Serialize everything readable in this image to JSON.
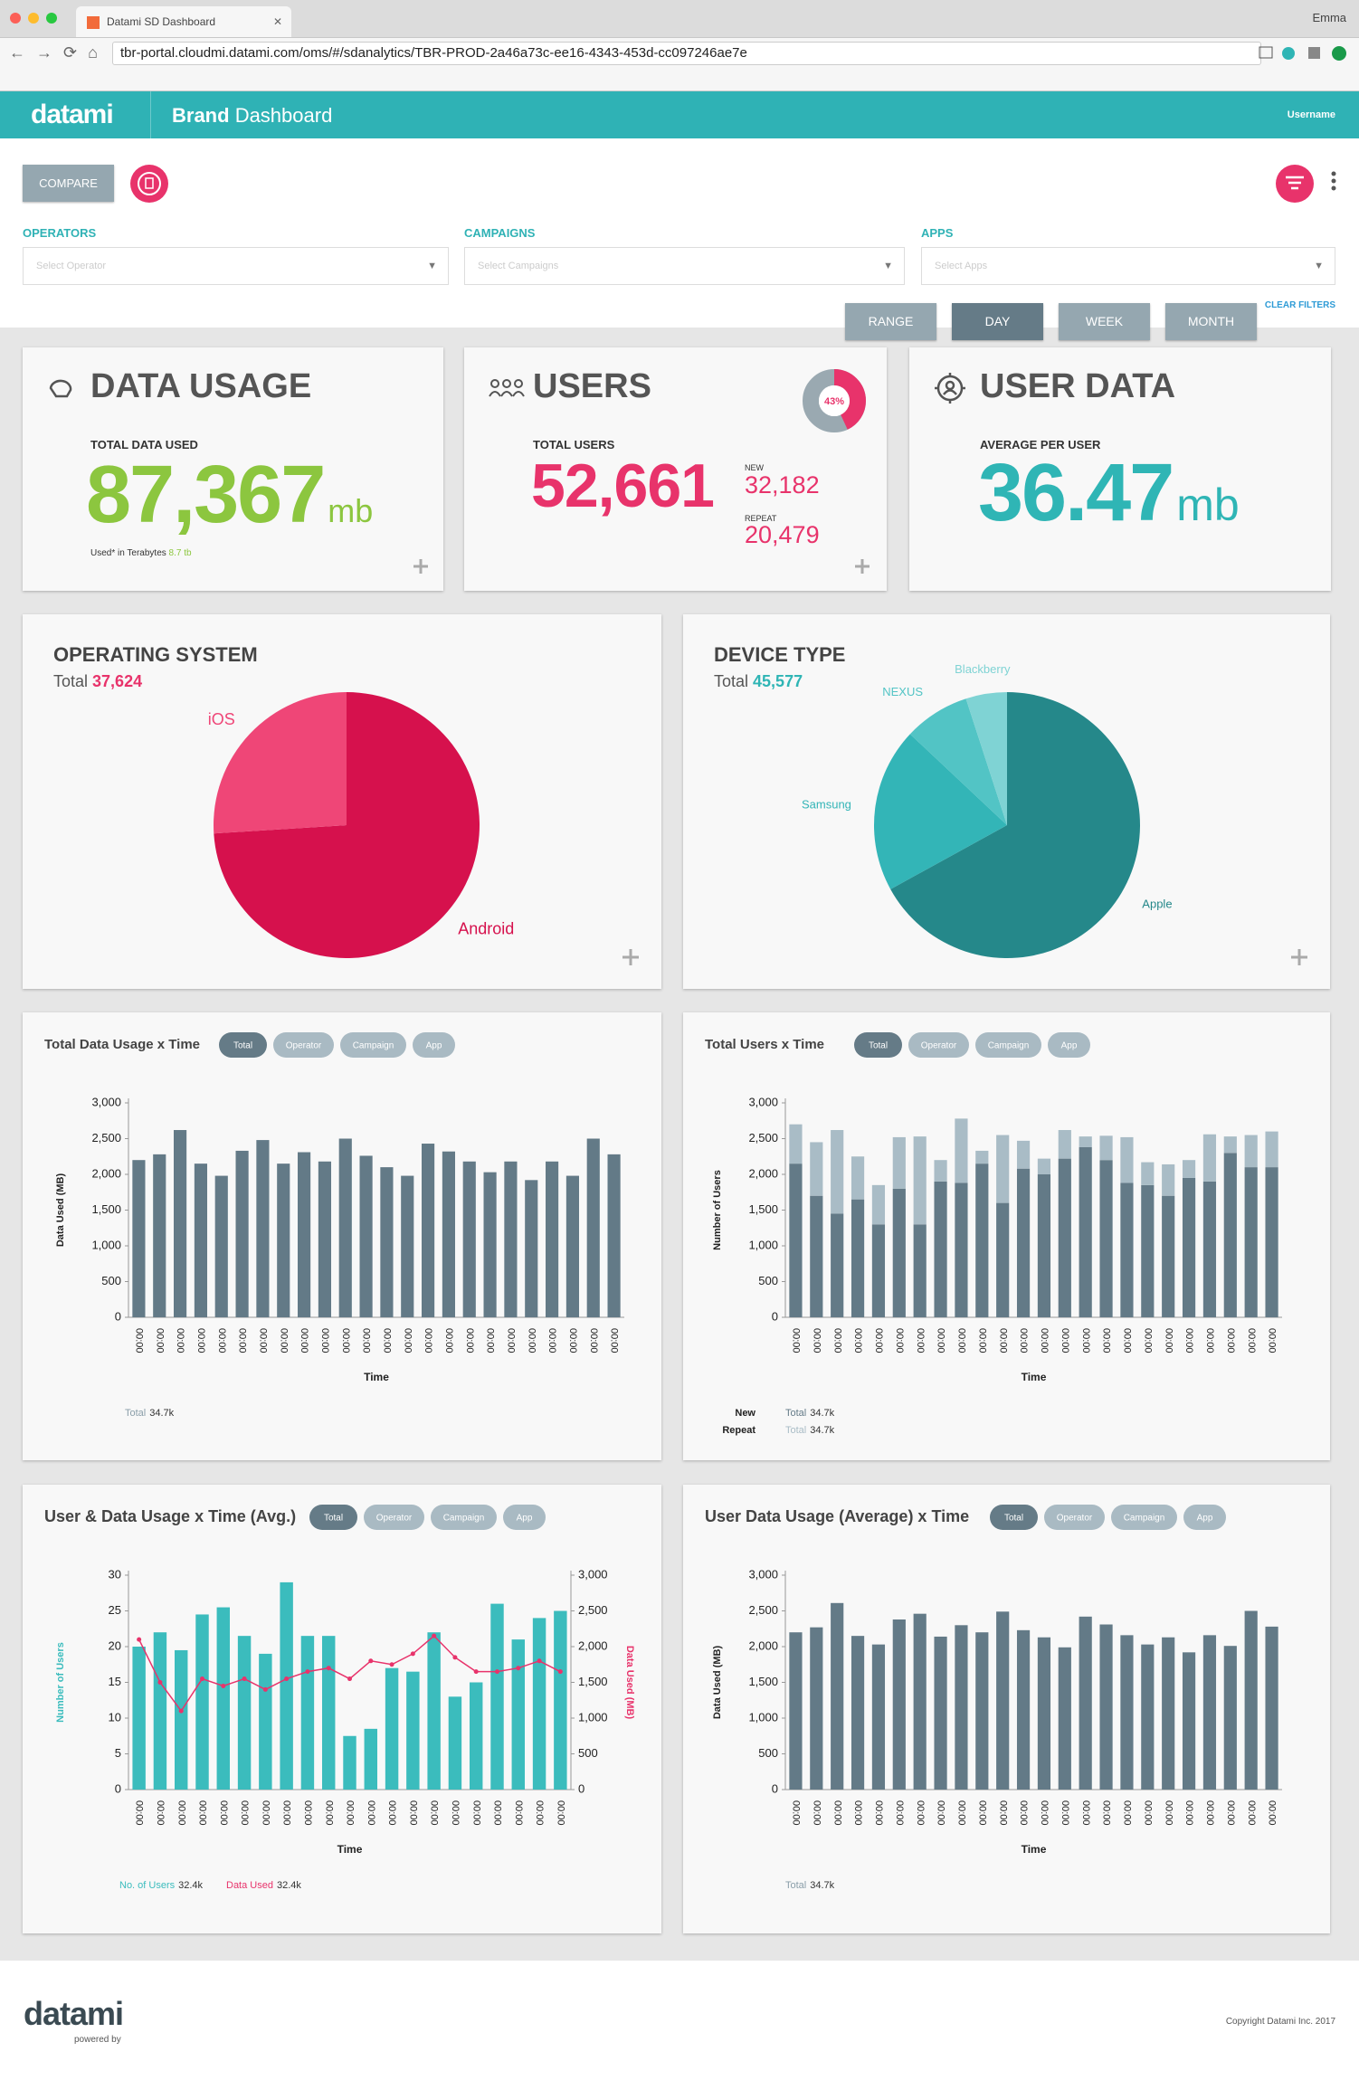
{
  "browser": {
    "tab": "Datami SD Dashboard",
    "user": "Emma",
    "url": "tbr-portal.cloudmi.datami.com/oms/#/sdanalytics/TBR-PROD-2a46a73c-ee16-4343-453d-cc097246ae7e"
  },
  "header": {
    "logo": "datami",
    "title_bold": "Brand",
    "title": "Dashboard",
    "user": "Username"
  },
  "toolbar": {
    "compare": "COMPARE",
    "ranges": [
      "RANGE",
      "DAY",
      "WEEK",
      "MONTH"
    ],
    "selected": 1
  },
  "filters": {
    "items": [
      {
        "label": "OPERATORS",
        "placeholder": "Select Operator"
      },
      {
        "label": "CAMPAIGNS",
        "placeholder": "Select Campaigns"
      },
      {
        "label": "APPS",
        "placeholder": "Select Apps"
      }
    ],
    "clear": "CLEAR FILTERS"
  },
  "cards": {
    "data_usage": {
      "title": "DATA USAGE",
      "label": "TOTAL DATA USED",
      "value": "87,367",
      "unit": "mb",
      "note": "Used* in Terabytes",
      "note_value": "8.7 tb"
    },
    "users": {
      "title": "USERS",
      "share": {
        "value": 43,
        "label": "43%"
      },
      "label": "TOTAL USERS",
      "value": "52,661",
      "new_label": "NEW",
      "new_value": "32,182",
      "repeat_label": "REPEAT",
      "repeat_value": "20,479"
    },
    "user_data": {
      "title": "USER DATA",
      "label": "AVERAGE PER USER",
      "value": "36.47",
      "unit": "mb"
    }
  },
  "pies": [
    {
      "type": "pie",
      "title": "OPERATING SYSTEM",
      "total_label": "Total",
      "total": "37,624",
      "accent": "#e8336b",
      "categories": [
        "Android",
        "iOS"
      ],
      "values": [
        74,
        26
      ],
      "colors": [
        "#d6114d",
        "#ef4677"
      ]
    },
    {
      "type": "pie",
      "title": "DEVICE TYPE",
      "total_label": "Total",
      "total": "45,577",
      "accent": "#2fb5b5",
      "categories": [
        "Apple",
        "Samsung",
        "NEXUS",
        "Blackberry"
      ],
      "values": [
        67,
        20,
        8,
        5
      ],
      "colors": [
        "#25888a",
        "#33b5b7",
        "#52c4c5",
        "#7fd3d4"
      ]
    }
  ],
  "charts": [
    {
      "type": "bar",
      "title": "Total Data Usage x Time",
      "tabs": [
        "Total",
        "Operator",
        "Campaign",
        "App"
      ],
      "selected": 0,
      "categories": [
        "00:00",
        "00:00",
        "00:00",
        "00:00",
        "00:00",
        "00:00",
        "00:00",
        "00:00",
        "00:00",
        "00:00",
        "00:00",
        "00:00",
        "00:00",
        "00:00",
        "00:00",
        "00:00",
        "00:00",
        "00:00",
        "00:00",
        "00:00",
        "00:00",
        "00:00",
        "00:00",
        "00:00"
      ],
      "series": [
        {
          "name": "Total",
          "total": "34.7k",
          "color": "#637a87",
          "values": [
            2200,
            2280,
            2620,
            2150,
            1980,
            2330,
            2480,
            2150,
            2310,
            2180,
            2500,
            2260,
            2100,
            1980,
            2430,
            2320,
            2180,
            2030,
            2180,
            1920,
            2180,
            1980,
            2500,
            2280
          ]
        }
      ],
      "ylim": [
        0,
        3000
      ],
      "yticks": [
        0,
        500,
        {
          "value": 1000,
          "label": "1,000"
        },
        {
          "value": 1500,
          "label": "1,500"
        },
        {
          "value": 2000,
          "label": "2,000"
        },
        {
          "value": 2500,
          "label": "2,500"
        },
        {
          "value": 3000,
          "label": "3,000"
        }
      ],
      "y_label": "Data Used (MB)",
      "x_label": "Time"
    },
    {
      "type": "stacked",
      "title": "Total Users x Time",
      "tabs": [
        "Total",
        "Operator",
        "Campaign",
        "App"
      ],
      "selected": 0,
      "categories": [
        "00:00",
        "00:00",
        "00:00",
        "00:00",
        "00:00",
        "00:00",
        "00:00",
        "00:00",
        "00:00",
        "00:00",
        "00:00",
        "00:00",
        "00:00",
        "00:00",
        "00:00",
        "00:00",
        "00:00",
        "00:00",
        "00:00",
        "00:00",
        "00:00",
        "00:00",
        "00:00",
        "00:00"
      ],
      "series": [
        {
          "name": "New",
          "total_label": "Total",
          "total": "34.7k",
          "color": "#637a87",
          "values": [
            2150,
            1700,
            1450,
            1650,
            1300,
            1800,
            1300,
            1900,
            1880,
            2150,
            1600,
            2080,
            2000,
            2220,
            2380,
            2200,
            1880,
            1850,
            1700,
            1950,
            1900,
            2300,
            2100,
            2100
          ]
        },
        {
          "name": "Repeat",
          "total_label": "Total",
          "total": "34.7k",
          "color": "#a9bcc6",
          "values": [
            550,
            750,
            1170,
            600,
            550,
            720,
            1230,
            300,
            900,
            180,
            950,
            390,
            220,
            400,
            150,
            340,
            640,
            320,
            440,
            250,
            660,
            230,
            450,
            500
          ]
        }
      ],
      "ylim": [
        0,
        3000
      ],
      "yticks": [
        0,
        500,
        {
          "value": 1000,
          "label": "1,000"
        },
        {
          "value": 1500,
          "label": "1,500"
        },
        {
          "value": 2000,
          "label": "2,000"
        },
        {
          "value": 2500,
          "label": "2,500"
        },
        {
          "value": 3000,
          "label": "3,000"
        }
      ],
      "y_label": "Number of Users",
      "x_label": "Time"
    },
    {
      "type": "combo",
      "title": "User & Data Usage x Time (Avg.)",
      "tabs": [
        "Total",
        "Operator",
        "Campaign",
        "App"
      ],
      "selected": 0,
      "categories": [
        "00:00",
        "00:00",
        "00:00",
        "00:00",
        "00:00",
        "00:00",
        "00:00",
        "00:00",
        "00:00",
        "00:00",
        "00:00",
        "00:00",
        "00:00",
        "00:00",
        "00:00",
        "00:00",
        "00:00",
        "00:00",
        "00:00",
        "00:00",
        "00:00"
      ],
      "series": [
        {
          "name": "No. of Users",
          "total": "32.4k",
          "color": "#3bbcbd",
          "values": [
            20,
            22,
            19.5,
            24.5,
            25.5,
            21.5,
            19,
            29,
            21.5,
            21.5,
            7.5,
            8.5,
            17,
            16.5,
            22,
            13,
            15,
            26,
            21,
            24,
            25
          ]
        },
        {
          "name": "Data Used",
          "total": "32.4k",
          "color": "#e8336b",
          "axis": "y2",
          "values": [
            2100,
            1500,
            1100,
            1550,
            1450,
            1550,
            1400,
            1550,
            1650,
            1700,
            1550,
            1800,
            1750,
            1900,
            2150,
            1850,
            1650,
            1650,
            1700,
            1800,
            1650
          ]
        }
      ],
      "ylim": [
        0,
        30
      ],
      "yticks": [
        0,
        5,
        10,
        15,
        20,
        25,
        30
      ],
      "y2lim": [
        0,
        3000
      ],
      "y2ticks": [
        0,
        500,
        {
          "value": 1000,
          "label": "1,000"
        },
        {
          "value": 1500,
          "label": "1,500"
        },
        {
          "value": 2000,
          "label": "2,000"
        },
        {
          "value": 2500,
          "label": "2,500"
        },
        {
          "value": 3000,
          "label": "3,000"
        }
      ],
      "y_label": "Number of Users",
      "y2_label": "Data Used (MB)",
      "x_label": "Time"
    },
    {
      "type": "bar",
      "title": "User Data Usage (Average) x Time",
      "tabs": [
        "Total",
        "Operator",
        "Campaign",
        "App"
      ],
      "selected": 0,
      "categories": [
        "00:00",
        "00:00",
        "00:00",
        "00:00",
        "00:00",
        "00:00",
        "00:00",
        "00:00",
        "00:00",
        "00:00",
        "00:00",
        "00:00",
        "00:00",
        "00:00",
        "00:00",
        "00:00",
        "00:00",
        "00:00",
        "00:00",
        "00:00",
        "00:00",
        "00:00",
        "00:00",
        "00:00"
      ],
      "series": [
        {
          "name": "Total",
          "total": "34.7k",
          "color": "#637a87",
          "values": [
            2200,
            2270,
            2610,
            2150,
            2030,
            2380,
            2460,
            2140,
            2300,
            2200,
            2490,
            2230,
            2130,
            1990,
            2420,
            2310,
            2160,
            2030,
            2130,
            1920,
            2160,
            2010,
            2500,
            2280
          ]
        }
      ],
      "ylim": [
        0,
        3000
      ],
      "yticks": [
        0,
        500,
        {
          "value": 1000,
          "label": "1,000"
        },
        {
          "value": 1500,
          "label": "1,500"
        },
        {
          "value": 2000,
          "label": "2,000"
        },
        {
          "value": 2500,
          "label": "2,500"
        },
        {
          "value": 3000,
          "label": "3,000"
        }
      ],
      "y_label": "Data Used (MB)",
      "x_label": "Time"
    }
  ],
  "footer": {
    "logo": "datami",
    "powered": "powered by",
    "copyright": "Copyright Datami Inc. 2017"
  }
}
